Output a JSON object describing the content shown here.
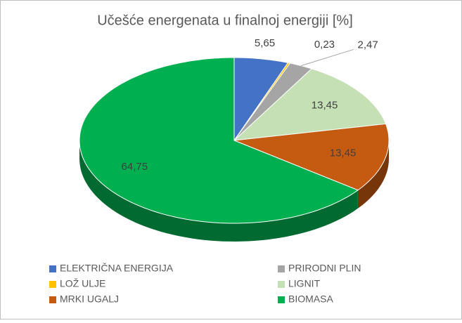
{
  "chart_data": {
    "type": "pie",
    "title": "Učešće energenata u finalnoj energiji [%]",
    "categories": [
      "ELEKTRIČNA ENERGIJA",
      "LOŽ ULJE",
      "PRIRODNI PLIN",
      "LIGNIT",
      "MRKI UGALJ",
      "BIOMASA"
    ],
    "values": [
      5.65,
      0.23,
      2.47,
      13.45,
      13.45,
      64.75
    ],
    "value_labels": [
      "5,65",
      "0,23",
      "2,47",
      "13,45",
      "13,45",
      "64,75"
    ],
    "colors": [
      "#4472c4",
      "#ffc000",
      "#a5a5a5",
      "#c5e0b4",
      "#c55a11",
      "#00b050"
    ],
    "legend": "bottom"
  }
}
